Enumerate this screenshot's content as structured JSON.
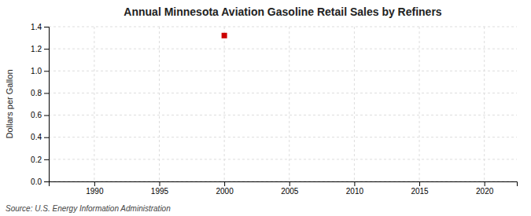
{
  "chart_data": {
    "type": "scatter",
    "title": "Annual Minnesota Aviation Gasoline Retail Sales by Refiners",
    "ylabel": "Dollars per Gallon",
    "source": "Source: U.S. Energy Information Administration",
    "x": [
      2000
    ],
    "values": [
      1.32
    ],
    "color": "#cc0000",
    "marker": "square",
    "xlim": [
      1986.5,
      2022.5
    ],
    "ylim": [
      0.0,
      1.4
    ],
    "xticks": [
      1990,
      1995,
      2000,
      2005,
      2010,
      2015,
      2020
    ],
    "yticks": [
      {
        "value": 0.0,
        "label": "0.0"
      },
      0.2,
      0.4,
      0.6,
      0.8,
      {
        "value": 1.0,
        "label": "1.0"
      },
      1.2,
      1.4
    ],
    "grid": true
  }
}
